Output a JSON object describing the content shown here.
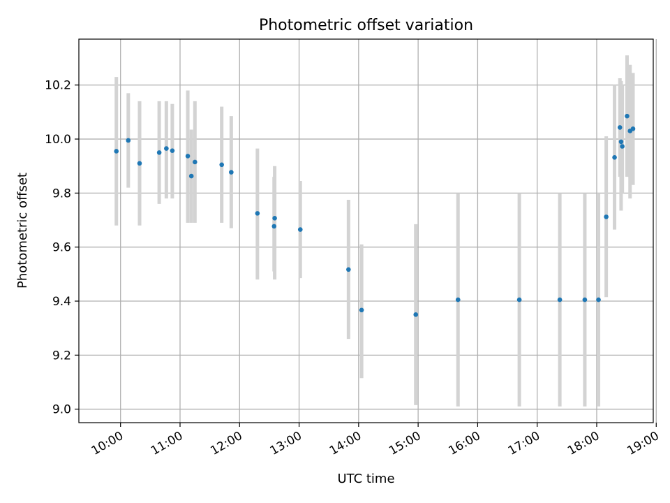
{
  "chart_data": {
    "type": "scatter",
    "title": "Photometric offset variation",
    "xlabel": "UTC time",
    "ylabel": "Photometric offset",
    "x_unit": "UTC hour of day",
    "xlim": [
      9.3,
      18.95
    ],
    "ylim": [
      8.95,
      10.37
    ],
    "grid": true,
    "x_ticks": [
      {
        "value": 10,
        "label": "10:00"
      },
      {
        "value": 11,
        "label": "11:00"
      },
      {
        "value": 12,
        "label": "12:00"
      },
      {
        "value": 13,
        "label": "13:00"
      },
      {
        "value": 14,
        "label": "14:00"
      },
      {
        "value": 15,
        "label": "15:00"
      },
      {
        "value": 16,
        "label": "16:00"
      },
      {
        "value": 17,
        "label": "17:00"
      },
      {
        "value": 18,
        "label": "18:00"
      },
      {
        "value": 19,
        "label": "19:00"
      }
    ],
    "y_ticks": [
      {
        "value": 9.0,
        "label": "9.0"
      },
      {
        "value": 9.2,
        "label": "9.2"
      },
      {
        "value": 9.4,
        "label": "9.4"
      },
      {
        "value": 9.6,
        "label": "9.6"
      },
      {
        "value": 9.8,
        "label": "9.8"
      },
      {
        "value": 10.0,
        "label": "10.0"
      },
      {
        "value": 10.2,
        "label": "10.2"
      }
    ],
    "colors": {
      "marker": "#1f77b4",
      "errorbar": "#d3d3d3",
      "grid": "#b0b0b0"
    },
    "points": [
      {
        "x": 9.93,
        "y": 9.955,
        "lo": 9.68,
        "hi": 10.23
      },
      {
        "x": 10.13,
        "y": 9.995,
        "lo": 9.82,
        "hi": 10.17
      },
      {
        "x": 10.32,
        "y": 9.91,
        "lo": 9.68,
        "hi": 10.14
      },
      {
        "x": 10.65,
        "y": 9.95,
        "lo": 9.76,
        "hi": 10.14
      },
      {
        "x": 10.77,
        "y": 9.965,
        "lo": 9.78,
        "hi": 10.14
      },
      {
        "x": 10.87,
        "y": 9.957,
        "lo": 9.78,
        "hi": 10.13
      },
      {
        "x": 11.13,
        "y": 9.937,
        "lo": 9.69,
        "hi": 10.18
      },
      {
        "x": 11.19,
        "y": 9.863,
        "lo": 9.69,
        "hi": 10.035
      },
      {
        "x": 11.25,
        "y": 9.915,
        "lo": 9.69,
        "hi": 10.14
      },
      {
        "x": 11.7,
        "y": 9.905,
        "lo": 9.69,
        "hi": 10.12
      },
      {
        "x": 11.86,
        "y": 9.877,
        "lo": 9.67,
        "hi": 10.085
      },
      {
        "x": 12.3,
        "y": 9.725,
        "lo": 9.48,
        "hi": 9.965
      },
      {
        "x": 12.58,
        "y": 9.677,
        "lo": 9.51,
        "hi": 9.86
      },
      {
        "x": 12.59,
        "y": 9.707,
        "lo": 9.48,
        "hi": 9.9
      },
      {
        "x": 13.02,
        "y": 9.665,
        "lo": 9.485,
        "hi": 9.845
      },
      {
        "x": 13.83,
        "y": 9.517,
        "lo": 9.26,
        "hi": 9.775
      },
      {
        "x": 14.05,
        "y": 9.367,
        "lo": 9.115,
        "hi": 9.61
      },
      {
        "x": 14.96,
        "y": 9.35,
        "lo": 9.015,
        "hi": 9.685
      },
      {
        "x": 15.67,
        "y": 9.405,
        "lo": 9.01,
        "hi": 9.8
      },
      {
        "x": 16.7,
        "y": 9.405,
        "lo": 9.01,
        "hi": 9.8
      },
      {
        "x": 17.38,
        "y": 9.405,
        "lo": 9.01,
        "hi": 9.8
      },
      {
        "x": 17.8,
        "y": 9.405,
        "lo": 9.01,
        "hi": 9.8
      },
      {
        "x": 18.03,
        "y": 9.405,
        "lo": 9.01,
        "hi": 9.8
      },
      {
        "x": 18.16,
        "y": 9.712,
        "lo": 9.415,
        "hi": 10.01
      },
      {
        "x": 18.3,
        "y": 9.932,
        "lo": 9.665,
        "hi": 10.2
      },
      {
        "x": 18.39,
        "y": 10.043,
        "lo": 9.86,
        "hi": 10.225
      },
      {
        "x": 18.41,
        "y": 9.99,
        "lo": 9.735,
        "hi": 10.215
      },
      {
        "x": 18.43,
        "y": 9.973,
        "lo": 9.8,
        "hi": 10.2
      },
      {
        "x": 18.51,
        "y": 10.085,
        "lo": 9.86,
        "hi": 10.31
      },
      {
        "x": 18.56,
        "y": 10.03,
        "lo": 9.78,
        "hi": 10.275
      },
      {
        "x": 18.61,
        "y": 10.038,
        "lo": 9.83,
        "hi": 10.245
      }
    ]
  }
}
